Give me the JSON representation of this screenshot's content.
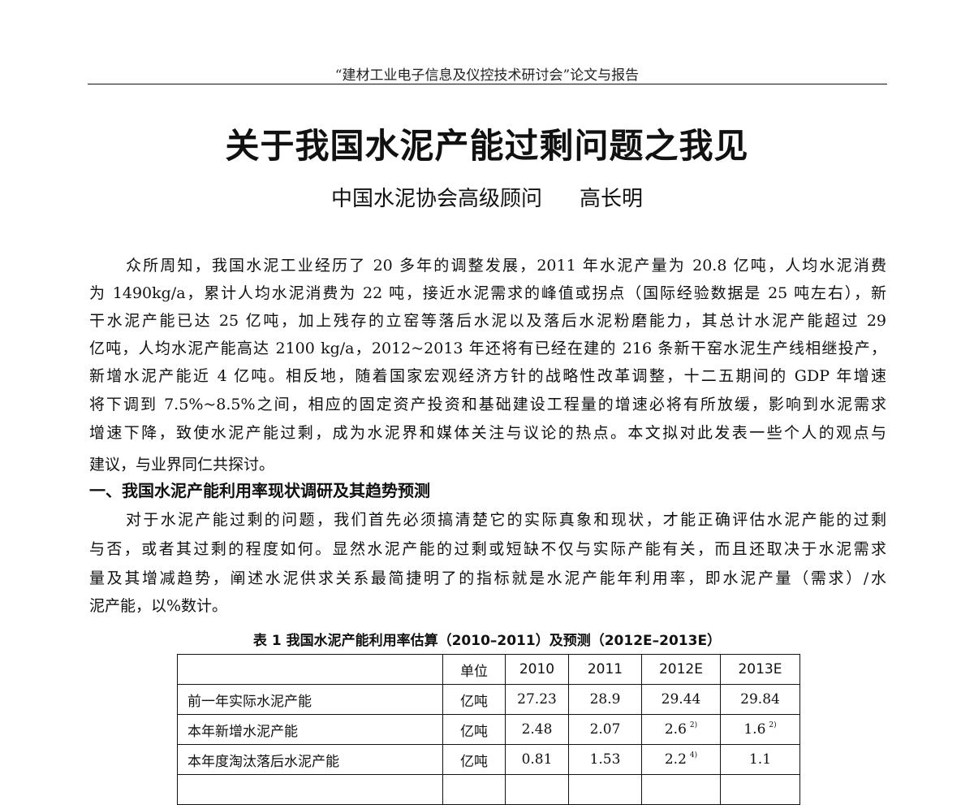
{
  "running_header": "“建材工业电子信息及仪控技术研讨会”论文与报告",
  "title": "关于我国水泥产能过剩问题之我见",
  "author": {
    "affiliation": "中国水泥协会高级顾问",
    "name": "高长明"
  },
  "paragraph1": [
    "众所周知，我国水泥工业经历了 20 多年的调整发展，2011 年水泥产量为 20.8 亿吨，人均水泥消费",
    "为 1490kg/a，累计人均水泥消费为 22 吨，接近水泥需求的峰值或拐点（国际经验数据是 25 吨左右），新",
    "干水泥产能已达 25 亿吨，加上残存的立窑等落后水泥以及落后水泥粉磨能力，其总计水泥产能超过 29",
    "亿吨，人均水泥产能高达 2100 kg/a，2012~2013 年还将有已经在建的 216 条新干窑水泥生产线相继投产，",
    "新增水泥产能近 4 亿吨。相反地，随着国家宏观经济方针的战略性改革调整，十二五期间的 GDP 年增速",
    "将下调到 7.5%~8.5%之间，相应的固定资产投资和基础建设工程量的增速必将有所放缓，影响到水泥需求",
    "增速下降，致使水泥产能过剩，成为水泥界和媒体关注与议论的热点。本文拟对此发表一些个人的观点与",
    "建议，与业界同仁共探讨。"
  ],
  "section1_heading": "一、我国水泥产能利用率现状调研及其趋势预测",
  "paragraph2": [
    "对于水泥产能过剩的问题，我们首先必须搞清楚它的实际真象和现状，才能正确评估水泥产能的过剩",
    "与否，或者其过剩的程度如何。显然水泥产能的过剩或短缺不仅与实际产能有关，而且还取决于水泥需求",
    "量及其增减趋势，阐述水泥供求关系最简捷明了的指标就是水泥产能年利用率，即水泥产量（需求）/水",
    "泥产能，以%数计。"
  ],
  "table1": {
    "caption": "表 1 我国水泥产能利用率估算（2010–2011）及预测（2012E–2013E）",
    "headers": [
      "",
      "单位",
      "2010",
      "2011",
      "2012E",
      "2013E"
    ],
    "rows": [
      {
        "label": "前一年实际水泥产能",
        "unit": "亿吨",
        "values": [
          "27.23",
          "28.9",
          "29.44",
          "29.84"
        ],
        "notes": [
          "",
          "",
          "",
          ""
        ]
      },
      {
        "label": "本年新增水泥产能",
        "unit": "亿吨",
        "values": [
          "2.48",
          "2.07",
          "2.6",
          "1.6"
        ],
        "notes": [
          "",
          "",
          "2)",
          "2)"
        ]
      },
      {
        "label": "本年度淘汰落后水泥产能",
        "unit": "亿吨",
        "values": [
          "0.81",
          "1.53",
          "2.2",
          "1.1"
        ],
        "notes": [
          "",
          "",
          "4)",
          ""
        ]
      }
    ]
  }
}
